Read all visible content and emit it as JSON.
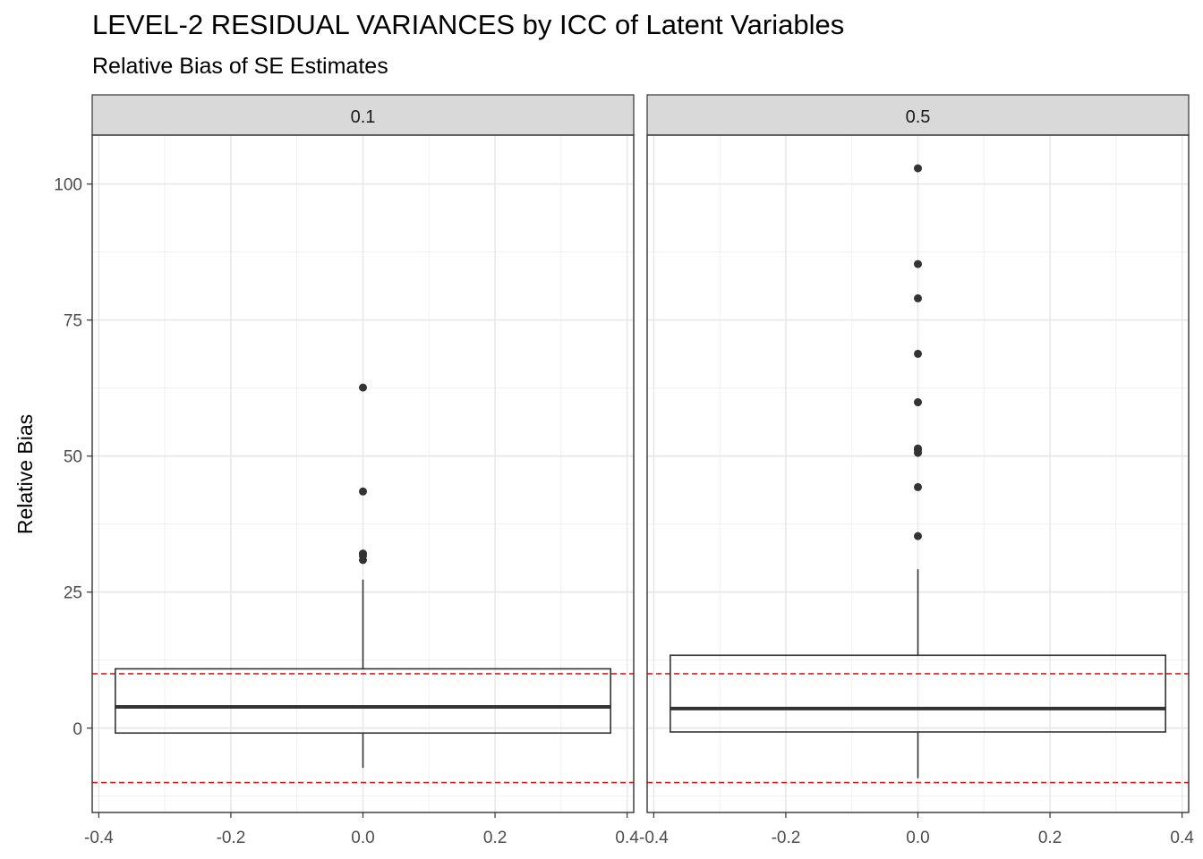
{
  "chart_data": {
    "type": "boxplot",
    "title": "LEVEL-2 RESIDUAL VARIANCES by ICC of Latent Variables",
    "subtitle": "Relative Bias of SE Estimates",
    "ylabel": "Relative Bias",
    "xlabel": "",
    "xlim": [
      -0.41,
      0.41
    ],
    "ylim": [
      -15.5,
      109
    ],
    "x_ticks": [
      -0.4,
      -0.2,
      0.0,
      0.2,
      0.4
    ],
    "x_tick_labels": [
      "-0.4",
      "-0.2",
      "0.0",
      "0.2",
      "0.4"
    ],
    "y_ticks": [
      0,
      25,
      50,
      75,
      100
    ],
    "y_tick_labels": [
      "0",
      "25",
      "50",
      "75",
      "100"
    ],
    "reference_lines": [
      10,
      -10
    ],
    "reference_line_color": "#e31a1c",
    "box_width": 0.75,
    "grid": true,
    "facets": [
      {
        "label": "0.1",
        "box": {
          "lower_whisker": -7.3,
          "q1": -0.9,
          "median": 3.9,
          "q3": 10.9,
          "upper_whisker": 27.3
        },
        "outliers": [
          30.9,
          31.7,
          32.1,
          43.5,
          62.6
        ]
      },
      {
        "label": "0.5",
        "box": {
          "lower_whisker": -9.2,
          "q1": -0.7,
          "median": 3.6,
          "q3": 13.4,
          "upper_whisker": 29.2
        },
        "outliers": [
          35.3,
          44.3,
          50.6,
          51.1,
          51.4,
          59.9,
          68.8,
          79.0,
          85.3,
          102.9
        ]
      }
    ]
  }
}
